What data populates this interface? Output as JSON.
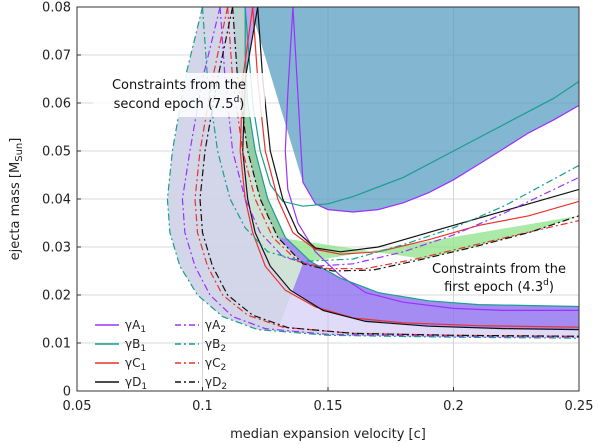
{
  "chart_data": {
    "type": "line",
    "xlabel": "median expansion velocity [c]",
    "ylabel": "ejecta mass [M",
    "ylabel_sub": "Sun",
    "ylabel_end": "]",
    "xlim": [
      0.05,
      0.25
    ],
    "ylim": [
      0,
      0.08
    ],
    "xticks": [
      0.05,
      0.1,
      0.15,
      0.2,
      0.25
    ],
    "xtick_labels": [
      "0.05",
      "0.1",
      "0.15",
      "0.2",
      "0.25"
    ],
    "yticks": [
      0,
      0.01,
      0.02,
      0.03,
      0.04,
      0.05,
      0.06,
      0.07,
      0.08
    ],
    "ytick_labels": [
      "0",
      "0.01",
      "0.02",
      "0.03",
      "0.04",
      "0.05",
      "0.06",
      "0.07",
      "0.08"
    ],
    "grid": true,
    "legend_position": "bottom-left",
    "colors": {
      "A": "#9b30ff",
      "B": "#1a9e8f",
      "C": "#e8322a",
      "D": "#111111"
    },
    "annotations": [
      {
        "lines": [
          "Constraints from the",
          "second epoch (7.5",
          "d",
          ")"
        ],
        "x": 0.0775,
        "y": 0.0705
      },
      {
        "lines": [
          "Constraints from the",
          "first epoch (4.3",
          "d",
          ")"
        ],
        "x": 0.2125,
        "y": 0.025
      }
    ],
    "series": [
      {
        "key": "A1",
        "name": "γA",
        "sub": "1",
        "family": "A",
        "style": "solid",
        "upper": [
          [
            0.136,
            0.08
          ],
          [
            0.14,
            0.0435
          ],
          [
            0.145,
            0.039
          ],
          [
            0.15,
            0.0378
          ],
          [
            0.16,
            0.0373
          ],
          [
            0.17,
            0.0378
          ],
          [
            0.18,
            0.0392
          ],
          [
            0.19,
            0.0413
          ],
          [
            0.2,
            0.044
          ],
          [
            0.21,
            0.0472
          ],
          [
            0.22,
            0.0505
          ],
          [
            0.23,
            0.0538
          ],
          [
            0.24,
            0.0565
          ],
          [
            0.25,
            0.0595
          ]
        ],
        "lower": [
          [
            0.136,
            0.08
          ],
          [
            0.134,
            0.062
          ],
          [
            0.133,
            0.05
          ],
          [
            0.134,
            0.042
          ],
          [
            0.138,
            0.035
          ],
          [
            0.145,
            0.029
          ],
          [
            0.155,
            0.024
          ],
          [
            0.165,
            0.0205
          ],
          [
            0.18,
            0.0185
          ],
          [
            0.2,
            0.0172
          ],
          [
            0.22,
            0.0168
          ],
          [
            0.25,
            0.0168
          ]
        ]
      },
      {
        "key": "B1",
        "name": "γB",
        "sub": "1",
        "family": "B",
        "style": "solid",
        "upper": [
          [
            0.117,
            0.08
          ],
          [
            0.12,
            0.06
          ],
          [
            0.123,
            0.05
          ],
          [
            0.127,
            0.043
          ],
          [
            0.132,
            0.0395
          ],
          [
            0.14,
            0.0385
          ],
          [
            0.15,
            0.039
          ],
          [
            0.16,
            0.0405
          ],
          [
            0.18,
            0.0445
          ],
          [
            0.2,
            0.05
          ],
          [
            0.22,
            0.0555
          ],
          [
            0.24,
            0.061
          ],
          [
            0.25,
            0.0645
          ]
        ],
        "lower": [
          [
            0.117,
            0.08
          ],
          [
            0.117,
            0.07
          ],
          [
            0.118,
            0.06
          ],
          [
            0.121,
            0.05
          ],
          [
            0.126,
            0.04
          ],
          [
            0.133,
            0.032
          ],
          [
            0.143,
            0.027
          ],
          [
            0.155,
            0.0235
          ],
          [
            0.17,
            0.0205
          ],
          [
            0.19,
            0.0188
          ],
          [
            0.21,
            0.018
          ],
          [
            0.25,
            0.0176
          ]
        ]
      },
      {
        "key": "C1",
        "name": "γC",
        "sub": "1",
        "family": "C",
        "style": "solid",
        "upper": [
          [
            0.12,
            0.08
          ],
          [
            0.122,
            0.065
          ],
          [
            0.125,
            0.05
          ],
          [
            0.13,
            0.04
          ],
          [
            0.136,
            0.033
          ],
          [
            0.145,
            0.0295
          ],
          [
            0.155,
            0.0285
          ],
          [
            0.17,
            0.029
          ],
          [
            0.19,
            0.0315
          ],
          [
            0.21,
            0.0345
          ],
          [
            0.23,
            0.0365
          ],
          [
            0.25,
            0.0395
          ]
        ],
        "lower": [
          [
            0.12,
            0.08
          ],
          [
            0.116,
            0.065
          ],
          [
            0.115,
            0.05
          ],
          [
            0.117,
            0.04
          ],
          [
            0.12,
            0.033
          ],
          [
            0.125,
            0.026
          ],
          [
            0.133,
            0.021
          ],
          [
            0.145,
            0.0175
          ],
          [
            0.16,
            0.0152
          ],
          [
            0.18,
            0.0142
          ],
          [
            0.21,
            0.0136
          ],
          [
            0.25,
            0.0133
          ]
        ]
      },
      {
        "key": "D1",
        "name": "γD",
        "sub": "1",
        "family": "D",
        "style": "solid",
        "upper": [
          [
            0.122,
            0.08
          ],
          [
            0.124,
            0.065
          ],
          [
            0.127,
            0.05
          ],
          [
            0.132,
            0.04
          ],
          [
            0.138,
            0.033
          ],
          [
            0.145,
            0.0298
          ],
          [
            0.155,
            0.029
          ],
          [
            0.17,
            0.03
          ],
          [
            0.19,
            0.033
          ],
          [
            0.21,
            0.036
          ],
          [
            0.23,
            0.039
          ],
          [
            0.25,
            0.042
          ]
        ],
        "lower": [
          [
            0.122,
            0.08
          ],
          [
            0.117,
            0.065
          ],
          [
            0.116,
            0.05
          ],
          [
            0.118,
            0.04
          ],
          [
            0.121,
            0.033
          ],
          [
            0.127,
            0.026
          ],
          [
            0.135,
            0.021
          ],
          [
            0.148,
            0.0168
          ],
          [
            0.165,
            0.0145
          ],
          [
            0.19,
            0.0135
          ],
          [
            0.22,
            0.013
          ],
          [
            0.25,
            0.0128
          ]
        ]
      },
      {
        "key": "A2",
        "name": "γA",
        "sub": "2",
        "family": "A",
        "style": "dashdot",
        "upper": [
          [
            0.107,
            0.08
          ],
          [
            0.109,
            0.065
          ],
          [
            0.112,
            0.05
          ],
          [
            0.117,
            0.04
          ],
          [
            0.123,
            0.033
          ],
          [
            0.132,
            0.028
          ],
          [
            0.145,
            0.026
          ],
          [
            0.16,
            0.0265
          ],
          [
            0.18,
            0.029
          ],
          [
            0.2,
            0.0325
          ],
          [
            0.22,
            0.037
          ],
          [
            0.25,
            0.0445
          ]
        ],
        "lower": [
          [
            0.107,
            0.08
          ],
          [
            0.1,
            0.065
          ],
          [
            0.095,
            0.05
          ],
          [
            0.092,
            0.04
          ],
          [
            0.093,
            0.033
          ],
          [
            0.097,
            0.026
          ],
          [
            0.103,
            0.02
          ],
          [
            0.112,
            0.0155
          ],
          [
            0.125,
            0.013
          ],
          [
            0.15,
            0.0118
          ],
          [
            0.2,
            0.0114
          ],
          [
            0.25,
            0.0112
          ]
        ]
      },
      {
        "key": "B2",
        "name": "γB",
        "sub": "2",
        "family": "B",
        "style": "dashdot",
        "upper": [
          [
            0.1,
            0.08
          ],
          [
            0.102,
            0.065
          ],
          [
            0.106,
            0.05
          ],
          [
            0.111,
            0.04
          ],
          [
            0.117,
            0.034
          ],
          [
            0.126,
            0.029
          ],
          [
            0.14,
            0.027
          ],
          [
            0.16,
            0.0275
          ],
          [
            0.18,
            0.0305
          ],
          [
            0.2,
            0.034
          ],
          [
            0.22,
            0.0385
          ],
          [
            0.25,
            0.047
          ]
        ],
        "lower": [
          [
            0.1,
            0.08
          ],
          [
            0.093,
            0.065
          ],
          [
            0.088,
            0.05
          ],
          [
            0.086,
            0.04
          ],
          [
            0.087,
            0.033
          ],
          [
            0.091,
            0.026
          ],
          [
            0.098,
            0.02
          ],
          [
            0.108,
            0.0155
          ],
          [
            0.122,
            0.0128
          ],
          [
            0.15,
            0.0116
          ],
          [
            0.2,
            0.0112
          ],
          [
            0.25,
            0.011
          ]
        ]
      },
      {
        "key": "C2",
        "name": "γC",
        "sub": "2",
        "family": "C",
        "style": "dashdot",
        "upper": [
          [
            0.11,
            0.08
          ],
          [
            0.112,
            0.065
          ],
          [
            0.116,
            0.05
          ],
          [
            0.121,
            0.04
          ],
          [
            0.128,
            0.032
          ],
          [
            0.138,
            0.027
          ],
          [
            0.15,
            0.0255
          ],
          [
            0.165,
            0.0255
          ],
          [
            0.185,
            0.0275
          ],
          [
            0.205,
            0.03
          ],
          [
            0.225,
            0.0325
          ],
          [
            0.25,
            0.0355
          ]
        ],
        "lower": [
          [
            0.11,
            0.08
          ],
          [
            0.104,
            0.065
          ],
          [
            0.099,
            0.05
          ],
          [
            0.097,
            0.04
          ],
          [
            0.098,
            0.033
          ],
          [
            0.102,
            0.026
          ],
          [
            0.108,
            0.02
          ],
          [
            0.118,
            0.0158
          ],
          [
            0.132,
            0.0133
          ],
          [
            0.16,
            0.012
          ],
          [
            0.2,
            0.0116
          ],
          [
            0.25,
            0.0114
          ]
        ]
      },
      {
        "key": "D2",
        "name": "γD",
        "sub": "2",
        "family": "D",
        "style": "dashdot",
        "upper": [
          [
            0.112,
            0.08
          ],
          [
            0.114,
            0.065
          ],
          [
            0.118,
            0.05
          ],
          [
            0.123,
            0.04
          ],
          [
            0.13,
            0.032
          ],
          [
            0.14,
            0.0265
          ],
          [
            0.152,
            0.025
          ],
          [
            0.168,
            0.0252
          ],
          [
            0.188,
            0.0275
          ],
          [
            0.208,
            0.03
          ],
          [
            0.23,
            0.033
          ],
          [
            0.25,
            0.0365
          ]
        ],
        "lower": [
          [
            0.112,
            0.08
          ],
          [
            0.106,
            0.065
          ],
          [
            0.101,
            0.05
          ],
          [
            0.099,
            0.04
          ],
          [
            0.1,
            0.033
          ],
          [
            0.104,
            0.026
          ],
          [
            0.11,
            0.02
          ],
          [
            0.12,
            0.0158
          ],
          [
            0.134,
            0.0132
          ],
          [
            0.16,
            0.012
          ],
          [
            0.2,
            0.0116
          ],
          [
            0.25,
            0.0114
          ]
        ]
      }
    ],
    "regions": [
      {
        "name": "first-epoch-region",
        "color": "#8a6cf0",
        "opacity": 0.85,
        "bounds": "B1.lower..D1.upper"
      },
      {
        "name": "second-epoch-region",
        "color": "#b6ecaa",
        "opacity": 0.7,
        "bounds": "B2.lower..D2.upper"
      }
    ]
  }
}
